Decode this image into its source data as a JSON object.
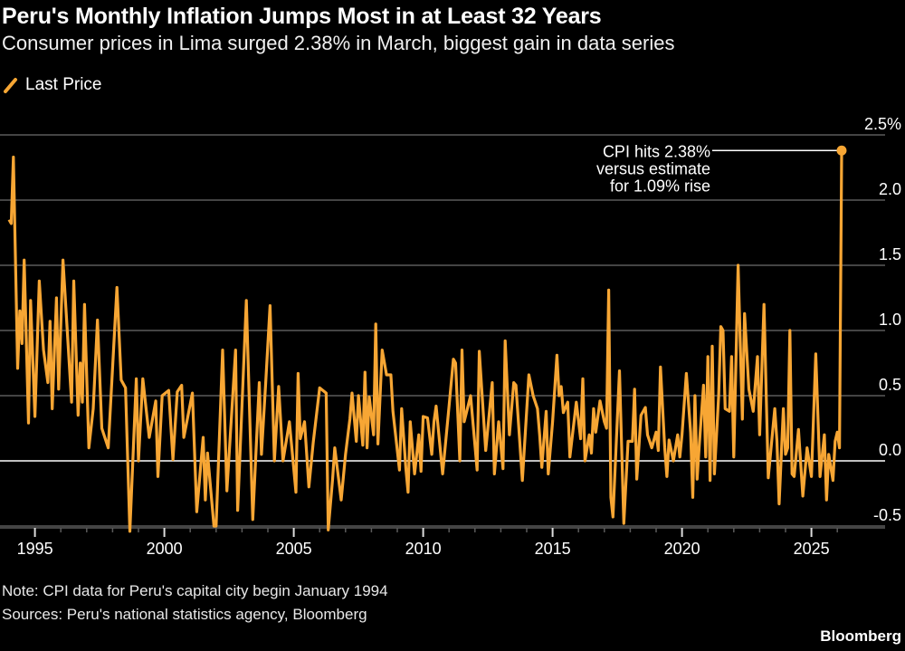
{
  "header": {
    "title": "Peru's Monthly Inflation Jumps Most in at Least 32 Years",
    "subtitle": "Consumer prices in Lima surged 2.38% in March, biggest gain in data series"
  },
  "legend": {
    "label": "Last Price",
    "color": "#f7a634"
  },
  "footer": {
    "note": "Note: CPI data for Peru's capital city begin January 1994",
    "sources": "Sources: Peru's national statistics agency, Bloomberg",
    "brand": "Bloomberg"
  },
  "colors": {
    "background": "#000000",
    "line": "#f7a634",
    "grid": "#5a5a5a",
    "zero_line": "#ffffff",
    "text": "#ffffff"
  },
  "chart_data": {
    "type": "line",
    "title": "Peru's Monthly Inflation Jumps Most in at Least 32 Years",
    "subtitle": "Consumer prices in Lima surged 2.38% in March, biggest gain in data series",
    "xlabel": "",
    "ylabel": "",
    "y_axis_side": "right",
    "ylim": [
      -0.5,
      2.5
    ],
    "yticks": [
      -0.5,
      0.0,
      0.5,
      1.0,
      1.5,
      2.0,
      2.5
    ],
    "ytick_labels": [
      "-0.5",
      "0.0",
      "0.5",
      "1.0",
      "1.5",
      "2.0",
      "2.5%"
    ],
    "xlim": [
      "1994-01",
      "2026-03"
    ],
    "xticks": [
      1995,
      2000,
      2005,
      2010,
      2015,
      2020,
      2025
    ],
    "xtick_labels": [
      "1995",
      "2000",
      "2005",
      "2010",
      "2015",
      "2020",
      "2025"
    ],
    "grid": true,
    "legend_position": "top-left",
    "annotation": {
      "lines": [
        "CPI hits 2.38%",
        "versus estimate",
        "for 1.09% rise"
      ],
      "date": "2026-03",
      "value": 2.38
    },
    "series": [
      {
        "name": "Last Price",
        "points": [
          [
            "1994-01",
            1.85
          ],
          [
            "1994-02",
            1.82
          ],
          [
            "1994-03",
            2.33
          ],
          [
            "1994-05",
            0.71
          ],
          [
            "1994-06",
            1.15
          ],
          [
            "1994-07",
            0.9
          ],
          [
            "1994-08",
            1.54
          ],
          [
            "1994-10",
            0.29
          ],
          [
            "1994-11",
            1.23
          ],
          [
            "1995-01",
            0.34
          ],
          [
            "1995-03",
            1.38
          ],
          [
            "1995-05",
            0.85
          ],
          [
            "1995-07",
            0.6
          ],
          [
            "1995-08",
            1.07
          ],
          [
            "1995-09",
            0.4
          ],
          [
            "1995-11",
            1.25
          ],
          [
            "1995-12",
            0.55
          ],
          [
            "1996-02",
            1.54
          ],
          [
            "1996-06",
            0.45
          ],
          [
            "1996-07",
            1.38
          ],
          [
            "1996-09",
            0.35
          ],
          [
            "1996-10",
            0.75
          ],
          [
            "1996-11",
            0.45
          ],
          [
            "1996-12",
            1.2
          ],
          [
            "1997-02",
            0.1
          ],
          [
            "1997-04",
            0.4
          ],
          [
            "1997-06",
            1.08
          ],
          [
            "1997-08",
            0.25
          ],
          [
            "1997-11",
            0.1
          ],
          [
            "1998-03",
            1.33
          ],
          [
            "1998-05",
            0.62
          ],
          [
            "1998-07",
            0.56
          ],
          [
            "1998-09",
            -0.54
          ],
          [
            "1998-12",
            0.63
          ],
          [
            "1999-01",
            0.0
          ],
          [
            "1999-03",
            0.63
          ],
          [
            "1999-06",
            0.18
          ],
          [
            "1999-09",
            0.46
          ],
          [
            "1999-10",
            -0.12
          ],
          [
            "1999-12",
            0.5
          ],
          [
            "2000-03",
            0.54
          ],
          [
            "2000-05",
            0.01
          ],
          [
            "2000-07",
            0.53
          ],
          [
            "2000-09",
            0.58
          ],
          [
            "2000-10",
            0.18
          ],
          [
            "2001-02",
            0.52
          ],
          [
            "2001-04",
            -0.39
          ],
          [
            "2001-07",
            0.18
          ],
          [
            "2001-08",
            -0.3
          ],
          [
            "2001-09",
            0.06
          ],
          [
            "2001-12",
            -0.5
          ],
          [
            "2002-01",
            -0.5
          ],
          [
            "2002-04",
            0.85
          ],
          [
            "2002-06",
            -0.23
          ],
          [
            "2002-10",
            0.85
          ],
          [
            "2002-11",
            -0.38
          ],
          [
            "2003-03",
            1.23
          ],
          [
            "2003-06",
            -0.45
          ],
          [
            "2003-09",
            0.6
          ],
          [
            "2003-10",
            0.05
          ],
          [
            "2003-12",
            0.6
          ],
          [
            "2004-02",
            1.19
          ],
          [
            "2004-04",
            0.0
          ],
          [
            "2004-06",
            0.57
          ],
          [
            "2004-08",
            0.0
          ],
          [
            "2004-11",
            0.3
          ],
          [
            "2005-02",
            -0.24
          ],
          [
            "2005-03",
            0.67
          ],
          [
            "2005-04",
            0.17
          ],
          [
            "2005-06",
            0.3
          ],
          [
            "2005-08",
            -0.2
          ],
          [
            "2005-10",
            0.14
          ],
          [
            "2006-01",
            0.56
          ],
          [
            "2006-04",
            0.52
          ],
          [
            "2006-05",
            -0.53
          ],
          [
            "2006-07",
            -0.14
          ],
          [
            "2006-08",
            0.1
          ],
          [
            "2006-11",
            -0.3
          ],
          [
            "2007-01",
            0.05
          ],
          [
            "2007-03",
            0.32
          ],
          [
            "2007-04",
            0.52
          ],
          [
            "2007-06",
            0.15
          ],
          [
            "2007-07",
            0.5
          ],
          [
            "2007-09",
            0.12
          ],
          [
            "2007-10",
            0.68
          ],
          [
            "2007-11",
            0.1
          ],
          [
            "2007-12",
            0.49
          ],
          [
            "2008-02",
            0.2
          ],
          [
            "2008-03",
            1.05
          ],
          [
            "2008-04",
            0.13
          ],
          [
            "2008-06",
            0.85
          ],
          [
            "2008-08",
            0.66
          ],
          [
            "2008-10",
            0.66
          ],
          [
            "2008-11",
            0.38
          ],
          [
            "2009-02",
            -0.07
          ],
          [
            "2009-03",
            0.4
          ],
          [
            "2009-05",
            -0.06
          ],
          [
            "2009-06",
            -0.24
          ],
          [
            "2009-07",
            0.3
          ],
          [
            "2009-09",
            -0.1
          ],
          [
            "2009-11",
            0.2
          ],
          [
            "2009-12",
            -0.08
          ],
          [
            "2010-01",
            0.34
          ],
          [
            "2010-03",
            0.33
          ],
          [
            "2010-05",
            0.05
          ],
          [
            "2010-06",
            0.3
          ],
          [
            "2010-07",
            0.42
          ],
          [
            "2010-10",
            -0.1
          ],
          [
            "2011-01",
            0.42
          ],
          [
            "2011-03",
            0.78
          ],
          [
            "2011-04",
            0.75
          ],
          [
            "2011-06",
            0.0
          ],
          [
            "2011-07",
            0.85
          ],
          [
            "2011-08",
            0.3
          ],
          [
            "2011-11",
            0.5
          ],
          [
            "2012-02",
            -0.07
          ],
          [
            "2012-03",
            0.84
          ],
          [
            "2012-06",
            0.08
          ],
          [
            "2012-09",
            0.6
          ],
          [
            "2012-10",
            -0.1
          ],
          [
            "2012-12",
            0.3
          ],
          [
            "2013-02",
            -0.06
          ],
          [
            "2013-03",
            0.92
          ],
          [
            "2013-05",
            0.2
          ],
          [
            "2013-07",
            0.6
          ],
          [
            "2013-08",
            0.58
          ],
          [
            "2013-11",
            -0.15
          ],
          [
            "2014-02",
            0.66
          ],
          [
            "2014-04",
            0.5
          ],
          [
            "2014-06",
            0.4
          ],
          [
            "2014-07",
            0.2
          ],
          [
            "2014-08",
            -0.05
          ],
          [
            "2014-10",
            0.38
          ],
          [
            "2014-11",
            -0.1
          ],
          [
            "2015-01",
            0.3
          ],
          [
            "2015-03",
            0.81
          ],
          [
            "2015-04",
            0.5
          ],
          [
            "2015-05",
            0.57
          ],
          [
            "2015-06",
            0.37
          ],
          [
            "2015-08",
            0.45
          ],
          [
            "2015-09",
            0.03
          ],
          [
            "2015-12",
            0.45
          ],
          [
            "2016-02",
            0.17
          ],
          [
            "2016-03",
            0.63
          ],
          [
            "2016-04",
            0.0
          ],
          [
            "2016-06",
            0.2
          ],
          [
            "2016-07",
            0.06
          ],
          [
            "2016-08",
            0.4
          ],
          [
            "2016-09",
            0.22
          ],
          [
            "2016-11",
            0.46
          ],
          [
            "2017-01",
            0.3
          ],
          [
            "2017-02",
            0.25
          ],
          [
            "2017-03",
            1.31
          ],
          [
            "2017-04",
            -0.28
          ],
          [
            "2017-05",
            -0.43
          ],
          [
            "2017-08",
            0.69
          ],
          [
            "2017-10",
            -0.48
          ],
          [
            "2017-12",
            0.15
          ],
          [
            "2018-02",
            0.15
          ],
          [
            "2018-03",
            0.55
          ],
          [
            "2018-04",
            -0.14
          ],
          [
            "2018-06",
            0.35
          ],
          [
            "2018-08",
            0.41
          ],
          [
            "2018-09",
            0.2
          ],
          [
            "2018-11",
            0.1
          ],
          [
            "2019-01",
            0.22
          ],
          [
            "2019-02",
            0.08
          ],
          [
            "2019-03",
            0.72
          ],
          [
            "2019-05",
            0.1
          ],
          [
            "2019-06",
            -0.12
          ],
          [
            "2019-07",
            0.16
          ],
          [
            "2019-09",
            0.0
          ],
          [
            "2019-11",
            0.2
          ],
          [
            "2019-12",
            0.03
          ],
          [
            "2020-01",
            0.2
          ],
          [
            "2020-03",
            0.67
          ],
          [
            "2020-05",
            0.22
          ],
          [
            "2020-06",
            -0.28
          ],
          [
            "2020-07",
            0.5
          ],
          [
            "2020-08",
            -0.14
          ],
          [
            "2020-09",
            0.12
          ],
          [
            "2020-11",
            0.58
          ],
          [
            "2020-12",
            0.03
          ],
          [
            "2021-01",
            0.8
          ],
          [
            "2021-02",
            -0.15
          ],
          [
            "2021-03",
            0.88
          ],
          [
            "2021-04",
            -0.1
          ],
          [
            "2021-06",
            0.5
          ],
          [
            "2021-07",
            1.03
          ],
          [
            "2021-08",
            1.0
          ],
          [
            "2021-09",
            0.4
          ],
          [
            "2021-11",
            0.38
          ],
          [
            "2021-12",
            0.8
          ],
          [
            "2022-01",
            0.03
          ],
          [
            "2022-03",
            1.5
          ],
          [
            "2022-05",
            0.32
          ],
          [
            "2022-06",
            1.13
          ],
          [
            "2022-08",
            0.55
          ],
          [
            "2022-10",
            0.38
          ],
          [
            "2022-12",
            0.8
          ],
          [
            "2023-01",
            0.2
          ],
          [
            "2023-03",
            1.2
          ],
          [
            "2023-05",
            -0.13
          ],
          [
            "2023-08",
            0.4
          ],
          [
            "2023-09",
            0.15
          ],
          [
            "2023-10",
            -0.33
          ],
          [
            "2023-12",
            0.4
          ],
          [
            "2024-01",
            0.05
          ],
          [
            "2024-02",
            0.1
          ],
          [
            "2024-03",
            1.0
          ],
          [
            "2024-04",
            -0.1
          ],
          [
            "2024-05",
            -0.12
          ],
          [
            "2024-07",
            0.24
          ],
          [
            "2024-09",
            -0.27
          ],
          [
            "2024-11",
            0.1
          ],
          [
            "2025-01",
            -0.12
          ],
          [
            "2025-03",
            0.82
          ],
          [
            "2025-05",
            -0.12
          ],
          [
            "2025-07",
            0.2
          ],
          [
            "2025-08",
            -0.3
          ],
          [
            "2025-09",
            0.05
          ],
          [
            "2025-11",
            -0.15
          ],
          [
            "2025-12",
            0.15
          ],
          [
            "2026-01",
            0.22
          ],
          [
            "2026-02",
            0.1
          ],
          [
            "2026-03",
            2.38
          ]
        ]
      }
    ]
  }
}
